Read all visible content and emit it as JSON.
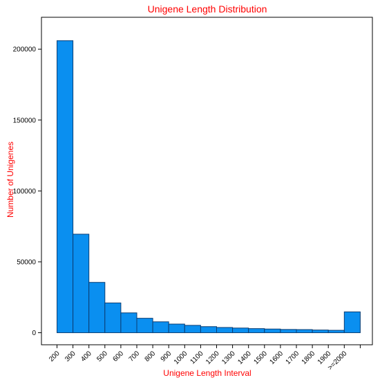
{
  "colors": {
    "bar_fill": "#0a8ff0",
    "bar_stroke": "#0a3d73",
    "title": "#ff0000",
    "axis": "#000000"
  },
  "chart_data": {
    "type": "bar",
    "title": "Unigene Length Distribution",
    "xlabel": "Unigene Length Interval",
    "ylabel": "Number of Unigenes",
    "categories": [
      "200",
      "300",
      "400",
      "500",
      "600",
      "700",
      "800",
      "900",
      "1000",
      "1100",
      "1200",
      "1300",
      "1400",
      "1500",
      "1600",
      "1700",
      "1800",
      "1900",
      ">=2000"
    ],
    "values": [
      206000,
      69500,
      35500,
      21000,
      14000,
      10200,
      7700,
      6100,
      5200,
      4300,
      3700,
      3300,
      2900,
      2600,
      2300,
      2200,
      1900,
      1700,
      14700
    ],
    "yticks": [
      0,
      50000,
      100000,
      150000,
      200000
    ],
    "ytick_labels": [
      "0",
      "50000",
      "100000",
      "150000",
      "200000"
    ],
    "ylim": [
      -8500,
      222500
    ],
    "grid": false,
    "legend": "none"
  }
}
